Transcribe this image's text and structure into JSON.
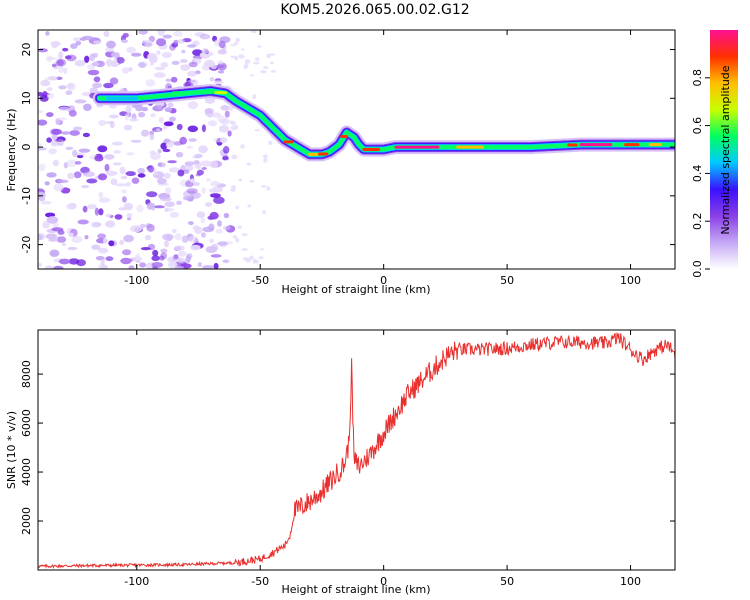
{
  "title": "KOM5.2026.065.00.02.G12",
  "chart_data": [
    {
      "type": "heatmap",
      "xlabel": "Height of straight line (km)",
      "ylabel": "Frequency (Hz)",
      "xlim": [
        -140,
        118
      ],
      "ylim": [
        -25,
        24
      ],
      "xticks": [
        -100,
        -50,
        0,
        50,
        100
      ],
      "yticks": [
        -20,
        -10,
        0,
        10,
        20
      ],
      "ridge": {
        "name": "Frequency ridge",
        "x": [
          -115,
          -100,
          -90,
          -80,
          -70,
          -64,
          -60,
          -55,
          -50,
          -45,
          -40,
          -35,
          -30,
          -25,
          -22,
          -18,
          -15,
          -12,
          -10,
          -8,
          -5,
          0,
          5,
          20,
          40,
          60,
          80,
          100,
          118
        ],
        "y": [
          10,
          10,
          10.5,
          11,
          11.5,
          11,
          9.5,
          8,
          6.5,
          4,
          1.5,
          0,
          -1.5,
          -1.5,
          -1,
          0.5,
          3,
          2,
          0.5,
          -0.5,
          -0.5,
          -0.5,
          0,
          0,
          0,
          0,
          0.5,
          0.5,
          0.5
        ]
      },
      "noise_region": [
        -140,
        -62
      ],
      "colorbar": {
        "label": "Normalized spectral amplitude",
        "range": [
          0.0,
          1.0
        ],
        "ticks": [
          "0.0",
          "0.2",
          "0.4",
          "0.6",
          "0.8"
        ],
        "colors": [
          "#ffffff",
          "#c4a8f5",
          "#8a3fe6",
          "#3a10ff",
          "#00c8ff",
          "#00ff60",
          "#c8ff00",
          "#ffbf00",
          "#ff3000",
          "#ff1090"
        ]
      }
    },
    {
      "type": "line",
      "xlabel": "Height of straight line (km)",
      "ylabel": "SNR (10 * v/v)",
      "xlim": [
        -140,
        118
      ],
      "ylim": [
        0,
        9800
      ],
      "xticks": [
        -100,
        -50,
        0,
        50,
        100
      ],
      "yticks": [
        2000,
        4000,
        6000,
        8000
      ],
      "color": "#e8312f",
      "series": [
        {
          "name": "SNR",
          "x": [
            -140,
            -120,
            -100,
            -80,
            -60,
            -50,
            -45,
            -40,
            -38,
            -36,
            -30,
            -25,
            -20,
            -16,
            -14,
            -13,
            -12,
            -10,
            -5,
            0,
            5,
            10,
            15,
            20,
            25,
            30,
            40,
            50,
            60,
            70,
            80,
            90,
            95,
            100,
            105,
            110,
            115,
            118
          ],
          "y": [
            150,
            180,
            200,
            220,
            300,
            450,
            700,
            1000,
            1400,
            2400,
            2800,
            3200,
            3800,
            4300,
            5200,
            8200,
            4500,
            4200,
            4800,
            5600,
            6400,
            7200,
            7700,
            8200,
            8700,
            9000,
            9000,
            9050,
            9200,
            9300,
            9300,
            9250,
            9500,
            9000,
            8600,
            9000,
            9200,
            8800
          ]
        }
      ]
    }
  ]
}
